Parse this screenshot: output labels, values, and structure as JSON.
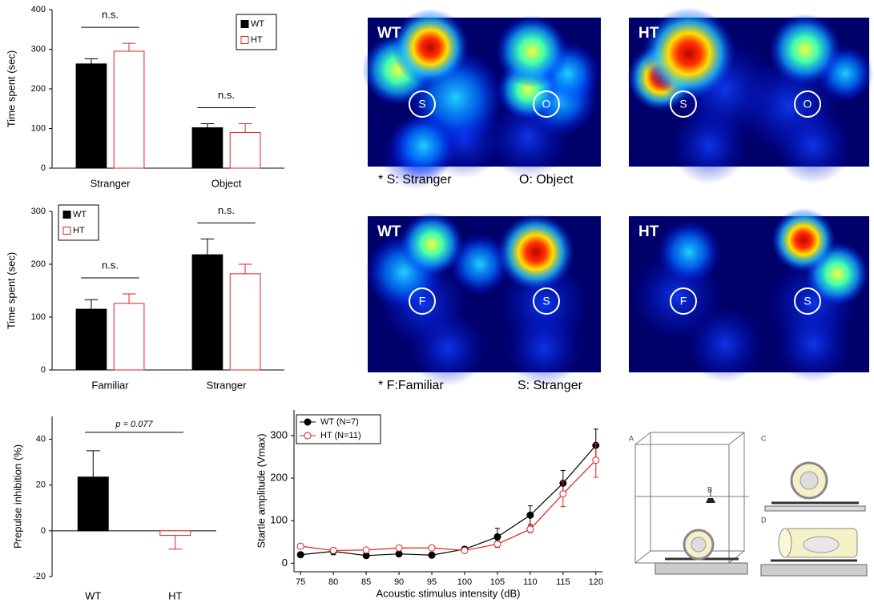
{
  "chart_data": [
    {
      "type": "bar",
      "ylabel": "Time spent (sec)",
      "categories": [
        "Stranger",
        "Object"
      ],
      "series": [
        {
          "name": "WT",
          "color": "#000000",
          "style": "filled",
          "values": [
            263,
            102
          ],
          "errors": [
            13,
            10
          ]
        },
        {
          "name": "HT",
          "color": "#e02020",
          "style": "open",
          "values": [
            295,
            90
          ],
          "errors": [
            20,
            22
          ]
        }
      ],
      "ylim": [
        0,
        400
      ],
      "yticks": [
        0,
        100,
        200,
        300,
        400
      ],
      "legend": "upper right",
      "annotations": [
        "n.s.",
        "n.s."
      ]
    },
    {
      "type": "bar",
      "ylabel": "Time spent (sec)",
      "categories": [
        "Familiar",
        "Stranger"
      ],
      "series": [
        {
          "name": "WT",
          "color": "#000000",
          "style": "filled",
          "values": [
            115,
            218
          ],
          "errors": [
            18,
            30
          ]
        },
        {
          "name": "HT",
          "color": "#e02020",
          "style": "open",
          "values": [
            126,
            182
          ],
          "errors": [
            18,
            18
          ]
        }
      ],
      "ylim": [
        0,
        300
      ],
      "yticks": [
        0,
        100,
        200,
        300
      ],
      "legend": "upper left",
      "annotations": [
        "n.s.",
        "n.s."
      ]
    },
    {
      "type": "bar",
      "ylabel": "Prepulse inhibition (%)",
      "categories": [
        "WT",
        "HT"
      ],
      "values": [
        23.5,
        -2
      ],
      "errors": [
        11.5,
        6
      ],
      "colors": [
        "#000000",
        "#e02020"
      ],
      "styles": [
        "filled",
        "open"
      ],
      "ylim": [
        -20,
        50
      ],
      "yticks": [
        -20,
        0,
        20,
        40
      ],
      "annotations": [
        "p = 0.077"
      ]
    },
    {
      "type": "line",
      "ylabel": "Startle amplitude (Vmax)",
      "xlabel": "Acoustic stimulus intensity (dB)",
      "x": [
        75,
        80,
        85,
        90,
        95,
        100,
        105,
        110,
        115,
        120
      ],
      "series": [
        {
          "name": "WT (N=7)",
          "color": "#000000",
          "style": "filled",
          "values": [
            20,
            28,
            18,
            22,
            19,
            33,
            62,
            113,
            188,
            277
          ],
          "errors": [
            5,
            8,
            4,
            4,
            4,
            5,
            20,
            22,
            30,
            38
          ]
        },
        {
          "name": "HT (N=11)",
          "color": "#e02020",
          "style": "open",
          "values": [
            40,
            30,
            31,
            36,
            36,
            30,
            45,
            80,
            163,
            242
          ],
          "errors": [
            5,
            5,
            4,
            4,
            4,
            4,
            8,
            8,
            30,
            40
          ]
        }
      ],
      "xlim": [
        74,
        121
      ],
      "xticks": [
        75,
        80,
        85,
        90,
        95,
        100,
        105,
        110,
        115,
        120
      ],
      "ylim": [
        -20,
        360
      ],
      "yticks": [
        0,
        100,
        200,
        300
      ],
      "legend": "upper left"
    }
  ],
  "heatmaps": [
    {
      "label": "WT",
      "zones": [
        "S",
        "O"
      ]
    },
    {
      "label": "HT",
      "zones": [
        "S",
        "O"
      ]
    },
    {
      "label": "WT",
      "zones": [
        "F",
        "S"
      ]
    },
    {
      "label": "HT",
      "zones": [
        "F",
        "S"
      ]
    }
  ],
  "captions": [
    [
      "* S: Stranger",
      "O: Object"
    ],
    [
      "* F:Familiar",
      "S: Stranger"
    ]
  ],
  "illustration": {
    "labels": [
      "A",
      "B",
      "C",
      "D"
    ]
  }
}
